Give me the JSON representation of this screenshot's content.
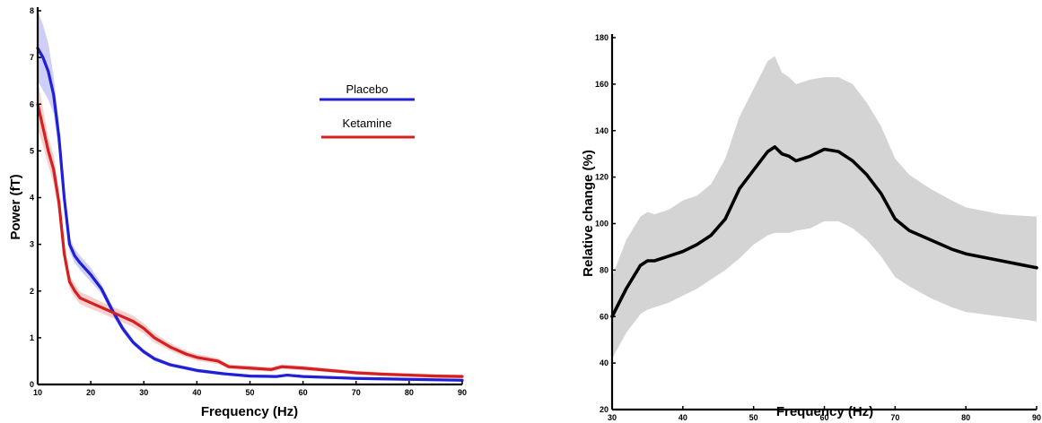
{
  "chart_data": [
    {
      "type": "line",
      "xlabel": "Frequency (Hz)",
      "ylabel": "Power (fT)",
      "xlim": [
        10,
        90
      ],
      "ylim": [
        0,
        8
      ],
      "xticks": [
        10,
        20,
        30,
        40,
        50,
        60,
        70,
        80,
        90
      ],
      "yticks": [
        0,
        1,
        2,
        3,
        4,
        5,
        6,
        7,
        8
      ],
      "grid": false,
      "legend_position": "top-right",
      "series": [
        {
          "name": "Placebo",
          "color": "#1f1fd6",
          "x": [
            10,
            11,
            12,
            13,
            14,
            15,
            16,
            17,
            18,
            20,
            22,
            24,
            26,
            28,
            30,
            32,
            35,
            38,
            40,
            45,
            50,
            55,
            57,
            60,
            65,
            70,
            75,
            80,
            85,
            90
          ],
          "y": [
            7.2,
            7.0,
            6.7,
            6.2,
            5.3,
            4.0,
            3.0,
            2.75,
            2.6,
            2.35,
            2.05,
            1.6,
            1.2,
            0.9,
            0.7,
            0.55,
            0.42,
            0.35,
            0.3,
            0.23,
            0.18,
            0.17,
            0.2,
            0.17,
            0.15,
            0.13,
            0.12,
            0.11,
            0.1,
            0.09
          ],
          "band_lower": [
            6.5,
            6.3,
            6.1,
            5.8,
            5.0,
            3.8,
            2.85,
            2.6,
            2.45,
            2.2,
            1.95,
            1.5,
            1.12,
            0.84,
            0.65,
            0.5,
            0.38,
            0.31,
            0.26,
            0.2,
            0.15,
            0.14,
            0.17,
            0.14,
            0.12,
            0.1,
            0.09,
            0.08,
            0.07,
            0.06
          ],
          "band_upper": [
            8.0,
            7.7,
            7.3,
            6.6,
            5.6,
            4.2,
            3.15,
            2.9,
            2.75,
            2.5,
            2.15,
            1.7,
            1.28,
            0.96,
            0.75,
            0.6,
            0.46,
            0.39,
            0.34,
            0.26,
            0.21,
            0.2,
            0.23,
            0.2,
            0.18,
            0.16,
            0.15,
            0.14,
            0.13,
            0.12
          ]
        },
        {
          "name": "Ketamine",
          "color": "#d42020",
          "x": [
            10,
            11,
            12,
            13,
            14,
            15,
            16,
            17,
            18,
            20,
            22,
            24,
            26,
            28,
            30,
            32,
            35,
            38,
            40,
            44,
            46,
            50,
            54,
            56,
            60,
            65,
            70,
            75,
            80,
            85,
            90
          ],
          "y": [
            6.0,
            5.5,
            5.0,
            4.6,
            3.9,
            2.8,
            2.2,
            2.0,
            1.85,
            1.75,
            1.65,
            1.55,
            1.45,
            1.35,
            1.2,
            1.0,
            0.8,
            0.65,
            0.58,
            0.5,
            0.38,
            0.35,
            0.32,
            0.38,
            0.35,
            0.3,
            0.25,
            0.22,
            0.2,
            0.18,
            0.17
          ],
          "band_lower": [
            5.5,
            5.1,
            4.7,
            4.3,
            3.65,
            2.6,
            2.05,
            1.86,
            1.72,
            1.62,
            1.53,
            1.43,
            1.33,
            1.23,
            1.09,
            0.9,
            0.72,
            0.58,
            0.51,
            0.44,
            0.33,
            0.3,
            0.27,
            0.33,
            0.3,
            0.26,
            0.21,
            0.18,
            0.16,
            0.14,
            0.13
          ],
          "band_upper": [
            6.5,
            5.9,
            5.3,
            4.9,
            4.15,
            3.0,
            2.35,
            2.14,
            1.98,
            1.88,
            1.77,
            1.67,
            1.57,
            1.47,
            1.31,
            1.1,
            0.88,
            0.72,
            0.65,
            0.56,
            0.43,
            0.4,
            0.37,
            0.43,
            0.4,
            0.34,
            0.29,
            0.26,
            0.24,
            0.22,
            0.21
          ]
        }
      ]
    },
    {
      "type": "line",
      "xlabel": "Frequency (Hz)",
      "ylabel": "Relative change (%)",
      "xlim": [
        30,
        90
      ],
      "ylim": [
        20,
        180
      ],
      "xticks": [
        30,
        40,
        50,
        60,
        70,
        80,
        90
      ],
      "yticks": [
        20,
        40,
        60,
        80,
        100,
        120,
        140,
        160,
        180
      ],
      "grid": false,
      "series": [
        {
          "color": "#000000",
          "band_color": "#d4d4d4",
          "x": [
            30,
            32,
            34,
            35,
            36,
            38,
            40,
            42,
            44,
            46,
            48,
            50,
            52,
            53,
            54,
            55,
            56,
            58,
            60,
            62,
            64,
            66,
            68,
            70,
            72,
            75,
            78,
            80,
            85,
            90
          ],
          "y": [
            60,
            72,
            82,
            84,
            84,
            86,
            88,
            91,
            95,
            102,
            115,
            123,
            131,
            133,
            130,
            129,
            127,
            129,
            132,
            131,
            127,
            121,
            113,
            102,
            97,
            93,
            89,
            87,
            84,
            81
          ],
          "band_lower": [
            42,
            53,
            61,
            63,
            64,
            66,
            69,
            72,
            76,
            80,
            85,
            91,
            95,
            96,
            96,
            96,
            97,
            98,
            101,
            101,
            98,
            93,
            86,
            77,
            73,
            68,
            64,
            62,
            60,
            58
          ],
          "band_upper": [
            77,
            93,
            103,
            105,
            104,
            106,
            110,
            112,
            117,
            128,
            146,
            158,
            170,
            172,
            165,
            163,
            160,
            162,
            163,
            163,
            160,
            152,
            142,
            128,
            121,
            115,
            110,
            107,
            104,
            103
          ]
        }
      ]
    }
  ]
}
